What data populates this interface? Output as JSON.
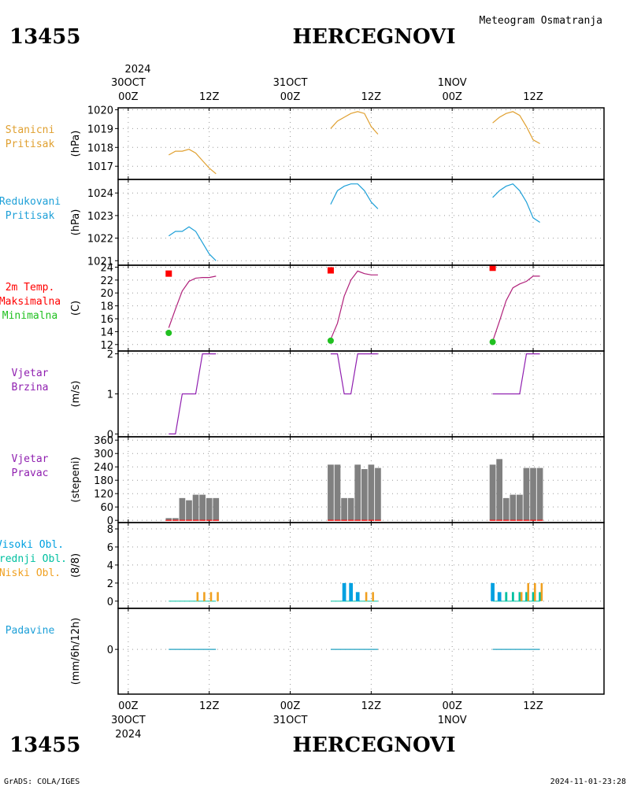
{
  "header": {
    "station_id": "13455",
    "station_name": "HERCEGNOVI",
    "title": "Meteogram Osmatranja"
  },
  "footer": {
    "station_id": "13455",
    "station_name": "HERCEGNOVI",
    "credit": "GrADS: COLA/IGES",
    "timestamp": "2024-11-01-23:28"
  },
  "time_axis": {
    "top_year": "2024",
    "top_labels": [
      {
        "hours": 0,
        "lines": [
          "30OCT",
          "00Z"
        ]
      },
      {
        "hours": 12,
        "lines": [
          "12Z"
        ]
      },
      {
        "hours": 24,
        "lines": [
          "31OCT",
          "00Z"
        ]
      },
      {
        "hours": 36,
        "lines": [
          "12Z"
        ]
      },
      {
        "hours": 48,
        "lines": [
          "1NOV",
          "00Z"
        ]
      },
      {
        "hours": 60,
        "lines": [
          "12Z"
        ]
      }
    ],
    "bottom_labels": [
      {
        "hours": 0,
        "lines": [
          "00Z",
          "30OCT",
          "2024"
        ]
      },
      {
        "hours": 12,
        "lines": [
          "12Z"
        ]
      },
      {
        "hours": 24,
        "lines": [
          "00Z",
          "31OCT"
        ]
      },
      {
        "hours": 36,
        "lines": [
          "12Z"
        ]
      },
      {
        "hours": 48,
        "lines": [
          "00Z",
          "1NOV"
        ]
      },
      {
        "hours": 60,
        "lines": [
          "12Z"
        ]
      }
    ],
    "range_hours": [
      -1.5,
      70.5
    ]
  },
  "colors": {
    "pressure_station": "#e0a030",
    "pressure_reduced": "#1ea0d8",
    "temp_line": "#b0207a",
    "temp_max": "#ff0000",
    "temp_min": "#20c020",
    "wind": "#9020b0",
    "wind_dir_bar": "#808080",
    "wind_dir_base": "#ff0000",
    "cloud_high": "#00a0e0",
    "cloud_mid": "#00c0a0",
    "cloud_low": "#f0a020",
    "precip": "#20a0c0"
  },
  "chart_data": [
    {
      "id": "station-pressure",
      "type": "line",
      "panel_label": [
        "Stanicni",
        "Pritisak"
      ],
      "ylabel": "(hPa)",
      "ylim": [
        1016.3,
        1020.1
      ],
      "yticks": [
        1017,
        1018,
        1019,
        1020
      ],
      "series": [
        {
          "x": [
            6,
            7,
            8,
            9,
            10,
            11,
            12,
            13
          ],
          "y": [
            1017.6,
            1017.8,
            1017.8,
            1017.9,
            1017.7,
            1017.3,
            1016.9,
            1016.6
          ]
        },
        {
          "x": [
            30,
            31,
            32,
            33,
            34,
            35,
            36,
            37
          ],
          "y": [
            1019.0,
            1019.4,
            1019.6,
            1019.8,
            1019.9,
            1019.8,
            1019.1,
            1018.7
          ]
        },
        {
          "x": [
            54,
            55,
            56,
            57,
            58,
            59,
            60,
            61
          ],
          "y": [
            1019.3,
            1019.6,
            1019.8,
            1019.9,
            1019.7,
            1019.1,
            1018.4,
            1018.2
          ]
        }
      ]
    },
    {
      "id": "reduced-pressure",
      "type": "line",
      "panel_label": [
        "Redukovani",
        "Pritisak"
      ],
      "ylabel": "(hPa)",
      "ylim": [
        1020.8,
        1024.6
      ],
      "yticks": [
        1021,
        1022,
        1023,
        1024
      ],
      "series": [
        {
          "x": [
            6,
            7,
            8,
            9,
            10,
            11,
            12,
            13
          ],
          "y": [
            1022.1,
            1022.3,
            1022.3,
            1022.5,
            1022.3,
            1021.8,
            1021.3,
            1021.0
          ]
        },
        {
          "x": [
            30,
            31,
            32,
            33,
            34,
            35,
            36,
            37
          ],
          "y": [
            1023.5,
            1024.1,
            1024.3,
            1024.4,
            1024.4,
            1024.1,
            1023.6,
            1023.3
          ]
        },
        {
          "x": [
            54,
            55,
            56,
            57,
            58,
            59,
            60,
            61
          ],
          "y": [
            1023.8,
            1024.1,
            1024.3,
            1024.4,
            1024.1,
            1023.6,
            1022.9,
            1022.7
          ]
        }
      ]
    },
    {
      "id": "temperature",
      "type": "line",
      "panel_label": [
        "2m Temp.",
        "Maksimalna",
        "Minimalna"
      ],
      "ylabel": "(C)",
      "ylim": [
        11,
        24.3
      ],
      "yticks": [
        12,
        14,
        16,
        18,
        20,
        22,
        24
      ],
      "series": [
        {
          "x": [
            6,
            7,
            8,
            9,
            10,
            11,
            12,
            13
          ],
          "y": [
            14.6,
            17.5,
            20.3,
            21.8,
            22.3,
            22.4,
            22.4,
            22.6
          ]
        },
        {
          "x": [
            30,
            31,
            32,
            33,
            34,
            35,
            36,
            37
          ],
          "y": [
            12.8,
            15.3,
            19.5,
            22.0,
            23.4,
            23.0,
            22.8,
            22.8
          ]
        },
        {
          "x": [
            54,
            55,
            56,
            57,
            58,
            59,
            60,
            61
          ],
          "y": [
            12.5,
            15.6,
            18.8,
            20.8,
            21.4,
            21.8,
            22.6,
            22.6
          ]
        }
      ],
      "max_points": [
        {
          "x": 6,
          "y": 23.0
        },
        {
          "x": 30,
          "y": 23.5
        },
        {
          "x": 54,
          "y": 23.9
        }
      ],
      "min_points": [
        {
          "x": 6,
          "y": 13.8
        },
        {
          "x": 30,
          "y": 12.6
        },
        {
          "x": 54,
          "y": 12.4
        }
      ]
    },
    {
      "id": "wind-speed",
      "type": "line",
      "panel_label": [
        "Vjetar",
        "Brzina"
      ],
      "ylabel": "(m/s)",
      "ylim": [
        -0.07,
        2.07
      ],
      "yticks": [
        0,
        1,
        2
      ],
      "series": [
        {
          "x": [
            6,
            7,
            8,
            9,
            10,
            11,
            12,
            13
          ],
          "y": [
            0,
            0,
            1,
            1,
            1,
            2,
            2,
            2
          ]
        },
        {
          "x": [
            30,
            31,
            32,
            33,
            34,
            35,
            36,
            37
          ],
          "y": [
            2,
            2,
            1,
            1,
            2,
            2,
            2,
            2
          ]
        },
        {
          "x": [
            54,
            55,
            56,
            57,
            58,
            59,
            60,
            61
          ],
          "y": [
            1,
            1,
            1,
            1,
            1,
            2,
            2,
            2
          ]
        }
      ]
    },
    {
      "id": "wind-direction",
      "type": "bar",
      "panel_label": [
        "Vjetar",
        "Pravac"
      ],
      "ylabel": "(stepeni)",
      "ylim": [
        -10,
        375
      ],
      "yticks": [
        0,
        60,
        120,
        180,
        240,
        300,
        360
      ],
      "x": [
        6,
        7,
        8,
        9,
        10,
        11,
        12,
        13,
        30,
        31,
        32,
        33,
        34,
        35,
        36,
        37,
        54,
        55,
        56,
        57,
        58,
        59,
        60,
        61
      ],
      "values": [
        10,
        10,
        100,
        90,
        115,
        115,
        100,
        100,
        250,
        250,
        100,
        100,
        250,
        230,
        250,
        235,
        250,
        275,
        100,
        115,
        115,
        235,
        235,
        235
      ]
    },
    {
      "id": "clouds",
      "type": "bar",
      "panel_label": [
        "Visoki Obl.",
        "Srednji Obl.",
        "Niski Obl."
      ],
      "ylabel": "(8/8)",
      "ylim": [
        -0.8,
        8.7
      ],
      "yticks": [
        0,
        2,
        4,
        6,
        8
      ],
      "high": {
        "x": [
          32,
          33,
          34,
          54,
          55
        ],
        "values": [
          2,
          2,
          1,
          2,
          1
        ]
      },
      "mid": {
        "x": [
          56,
          57,
          58,
          59,
          60,
          61
        ],
        "values": [
          1,
          1,
          1,
          1,
          1,
          1
        ]
      },
      "low": {
        "x": [
          10,
          11,
          12,
          13,
          35,
          36,
          58,
          59,
          60,
          61
        ],
        "values": [
          1,
          1,
          1,
          1,
          1,
          1,
          1,
          2,
          2,
          2
        ]
      }
    },
    {
      "id": "precipitation",
      "type": "line",
      "panel_label": [
        "Padavine"
      ],
      "ylabel": "(mm/6h/12h)",
      "ylim": [
        -0.6,
        0.55
      ],
      "yticks": [
        0
      ],
      "segments": [
        [
          6,
          13
        ],
        [
          30,
          37
        ],
        [
          54,
          61
        ]
      ],
      "values": [
        0,
        0,
        0
      ]
    }
  ]
}
